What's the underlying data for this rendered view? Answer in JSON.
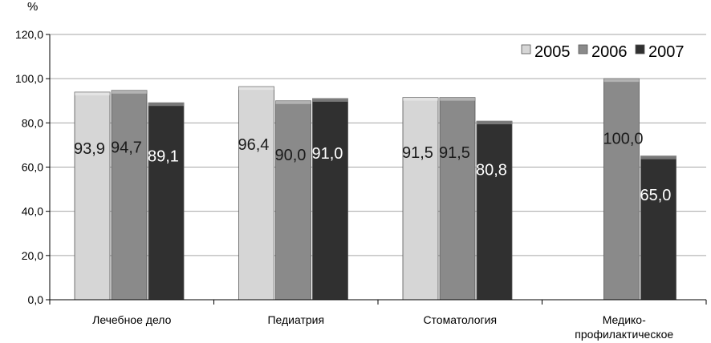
{
  "chart_data": {
    "type": "bar",
    "ylabel": "%",
    "ylim": [
      0,
      120
    ],
    "yticks": [
      "0,0",
      "20,0",
      "40,0",
      "60,0",
      "80,0",
      "100,0",
      "120,0"
    ],
    "grid": true,
    "legend_position": "top-right",
    "categories": [
      [
        "Лечебное дело"
      ],
      [
        "Педиатрия"
      ],
      [
        "Стоматология"
      ],
      [
        "Медико-",
        "профилактическое"
      ]
    ],
    "series": [
      {
        "name": "2005",
        "color": "#d6d6d6",
        "values": [
          93.9,
          96.4,
          91.5,
          null
        ],
        "labels": [
          "93,9",
          "96,4",
          "91,5",
          ""
        ]
      },
      {
        "name": "2006",
        "color": "#8a8a8a",
        "values": [
          94.7,
          90.0,
          91.5,
          100.0
        ],
        "labels": [
          "94,7",
          "90,0",
          "91,5",
          "100,0"
        ]
      },
      {
        "name": "2007",
        "color": "#303030",
        "values": [
          89.1,
          91.0,
          80.8,
          65.0
        ],
        "labels": [
          "89,1",
          "91,0",
          "80,8",
          "65,0"
        ]
      }
    ]
  }
}
